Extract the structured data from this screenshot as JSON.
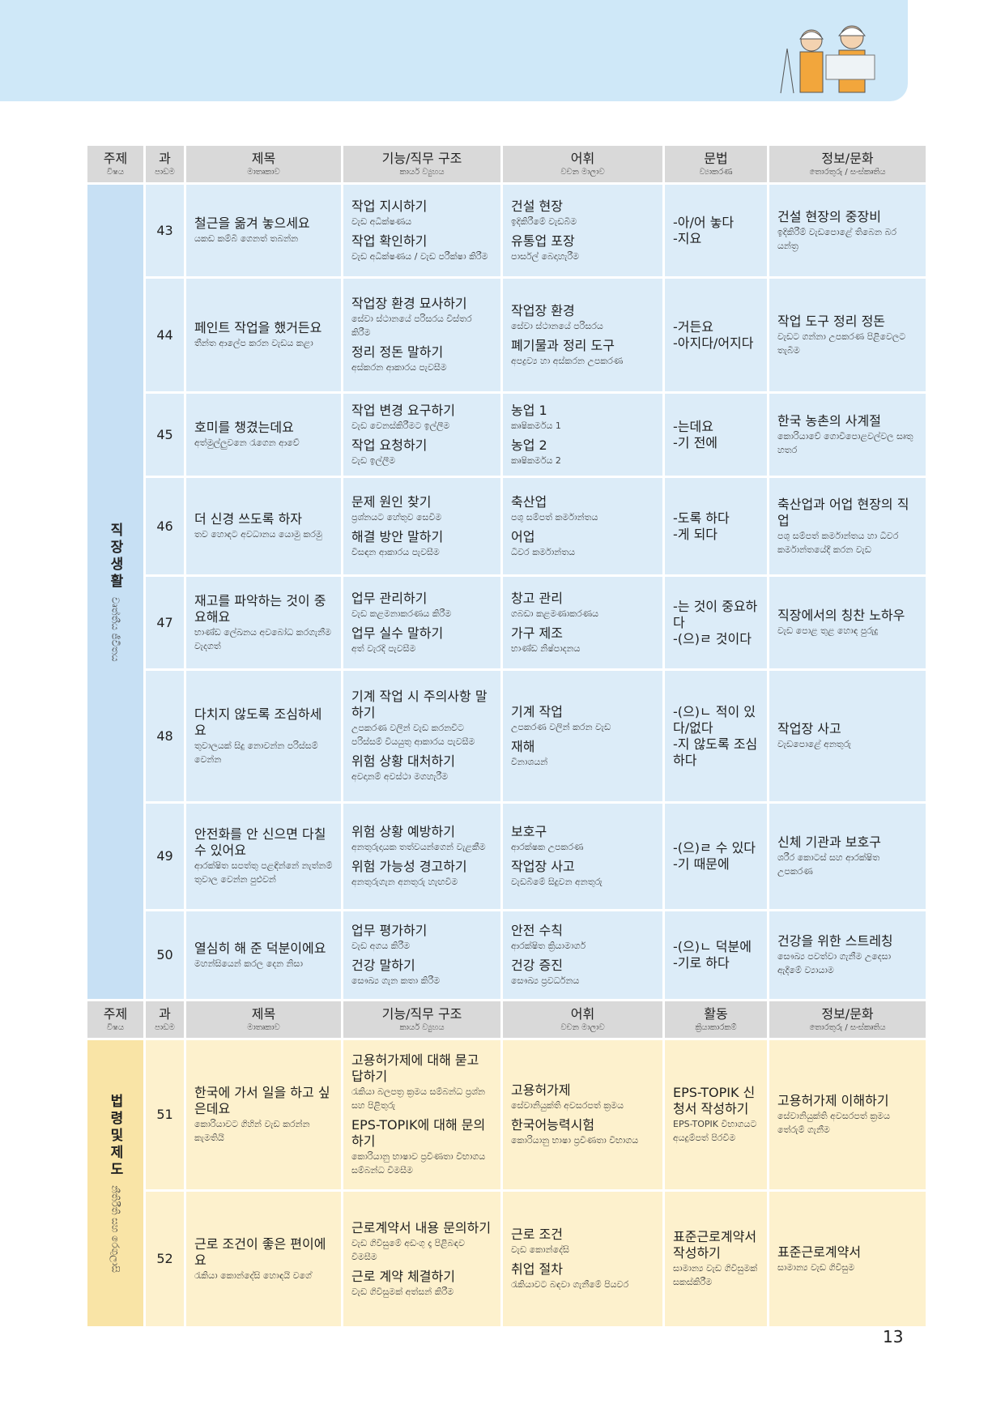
{
  "page_number": "13",
  "sections": [
    {
      "header": [
        {
          "ko": "주제",
          "si": "විෂය"
        },
        {
          "ko": "과",
          "si": "පාඩම"
        },
        {
          "ko": "제목",
          "si": "මාතෘකාව"
        },
        {
          "ko": "기능/직무 구조",
          "si": "කාර්ය ව්‍යුහය"
        },
        {
          "ko": "어휘",
          "si": "වචන මාලාව"
        },
        {
          "ko": "문법",
          "si": "ව්‍යාකරණ"
        },
        {
          "ko": "정보/문화",
          "si": "තොරතුරු / සංස්කෘතිය"
        }
      ],
      "topic": {
        "ko": "직장생활",
        "si": "වෘත්තීය ජීවිතය"
      },
      "rows": [
        {
          "lesson": "43",
          "title": {
            "ko": "철근을 옮겨 놓으세요",
            "si": "යකඩ කම්බි ගෙනත් තබන්න"
          },
          "functions": [
            {
              "ko": "작업 지시하기",
              "si": "වැඩ අධීක්ෂණය"
            },
            {
              "ko": "작업 확인하기",
              "si": "වැඩ අධීක්ෂණය / වැඩ පරීක්ෂා කිරීම"
            }
          ],
          "vocab": [
            {
              "ko": "건설 현장",
              "si": "ඉදිකිරීමේ වැඩබිම"
            },
            {
              "ko": "유통업 포장",
              "si": "පාර්සල් බෙදාහැරීම"
            }
          ],
          "grammar": [
            "-아/어 놓다",
            "-지요"
          ],
          "culture": {
            "ko": "건설 현장의 중장비",
            "si": "ඉදිකිරීම් වැඩපොළේ තිබෙන බර යන්ත්‍ර"
          }
        },
        {
          "lesson": "44",
          "title": {
            "ko": "페인트 작업을 했거든요",
            "si": "තීන්ත ආලේප කරන වැඩය කළා"
          },
          "functions": [
            {
              "ko": "작업장 환경 묘사하기",
              "si": "සේවා ස්ථානයේ පරිසරය විස්තර කිරීම"
            },
            {
              "ko": "정리 정돈 말하기",
              "si": "අස්කරන ආකාරය පැවසීම"
            }
          ],
          "vocab": [
            {
              "ko": "작업장 환경",
              "si": "සේවා ස්ථානයේ පරිසරය"
            },
            {
              "ko": "폐기물과 정리 도구",
              "si": "අපද්‍රව්‍ය හා අස්කරන උපකරණ"
            }
          ],
          "grammar": [
            "-거든요",
            "-아지다/어지다"
          ],
          "culture": {
            "ko": "작업 도구 정리 정돈",
            "si": "වැඩට ගන්නා උපකරණ පිළිවෙලට තැබීම"
          }
        },
        {
          "lesson": "45",
          "title": {
            "ko": "호미를 챙겼는데요",
            "si": "අත්මුල්ලුවනෙ රැගෙන ආවේ"
          },
          "functions": [
            {
              "ko": "작업 변경 요구하기",
              "si": "වැඩ වෙනස්කිරීමට ඉල්ලීම"
            },
            {
              "ko": "작업 요청하기",
              "si": "වැඩ ඉල්ලීම"
            }
          ],
          "vocab": [
            {
              "ko": "농업 1",
              "si": "කෘෂිකර්මය 1"
            },
            {
              "ko": "농업 2",
              "si": "කෘෂිකර්මය 2"
            }
          ],
          "grammar": [
            "-는데요",
            "-기 전에"
          ],
          "culture": {
            "ko": "한국 농촌의 사계절",
            "si": "කොරියාවේ ගොවිපොළවල්වල සෘතු හතර"
          }
        },
        {
          "lesson": "46",
          "title": {
            "ko": "더 신경 쓰도록 하자",
            "si": "තව හොඳට අවධානය යොමු කරමු"
          },
          "functions": [
            {
              "ko": "문제 원인 찾기",
              "si": "ප්‍රශ්නයට හේතුව සෙවීම"
            },
            {
              "ko": "해결 방안 말하기",
              "si": "විසඳන ආකාරය පැවසීම"
            }
          ],
          "vocab": [
            {
              "ko": "축산업",
              "si": "පශු සම්පත් කර්මාන්තය"
            },
            {
              "ko": "어업",
              "si": "ධීවර කර්මාන්තය"
            }
          ],
          "grammar": [
            "-도록 하다",
            "-게 되다"
          ],
          "culture": {
            "ko": "축산업과 어업 현장의 직업",
            "si": "පශු සම්පත් කර්මාන්තය හා ධීවර කර්මාන්තයේදී කරන වැඩ"
          }
        },
        {
          "lesson": "47",
          "title": {
            "ko": "재고를 파악하는 것이 중요해요",
            "si": "භාණ්ඩ ලේඛනය අවබෝධ කරගැනීම වැදගත්"
          },
          "functions": [
            {
              "ko": "업무 관리하기",
              "si": "වැඩ කළමනාකරණය කිරීම"
            },
            {
              "ko": "업무 실수 말하기",
              "si": "අත් වැරදි පැවසීම"
            }
          ],
          "vocab": [
            {
              "ko": "창고 관리",
              "si": "ගබඩා කළමණාකරණය"
            },
            {
              "ko": "가구 제조",
              "si": "භාණ්ඩ නිෂ්පාදනය"
            }
          ],
          "grammar": [
            "-는 것이 중요하다",
            "-(으)ㄹ 것이다"
          ],
          "culture": {
            "ko": "직장에서의 칭찬 노하우",
            "si": "වැඩ පොළ තුළ හොඳ පුරුදු"
          }
        },
        {
          "lesson": "48",
          "title": {
            "ko": "다치지 않도록 조심하세요",
            "si": "තුවාලයක් සිදු නොවන්න පරිස්සම් වෙන්න"
          },
          "functions": [
            {
              "ko": "기계 작업 시 주의사항 말하기",
              "si": "උපකරණ වලින් වැඩ කරනවිට පරිස්සම් වියයුතු ආකාරය පැවසීම"
            },
            {
              "ko": "위험 상황 대처하기",
              "si": "අවදානම් අවස්ථා මගහැරීම"
            }
          ],
          "vocab": [
            {
              "ko": "기계 작업",
              "si": "උපකරණ වලින් කරන වැඩ"
            },
            {
              "ko": "재해",
              "si": "විනාශයන්"
            }
          ],
          "grammar": [
            "-(으)ㄴ 적이 있다/없다",
            "-지 않도록 조심하다"
          ],
          "culture": {
            "ko": "작업장 사고",
            "si": "වැඩපොළේ අනතුරු"
          }
        },
        {
          "lesson": "49",
          "title": {
            "ko": "안전화를 안 신으면 다칠 수 있어요",
            "si": "ආරක්ෂිත සපත්තු පළඳින්නේ නැත්නම් තුවාල වෙන්න පුළුවන්"
          },
          "functions": [
            {
              "ko": "위험 상황 예방하기",
              "si": "අනතුරුදායක තත්වයන්ගෙන් වැළකීම"
            },
            {
              "ko": "위험 가능성 경고하기",
              "si": "අනතුරුගැන අනතුරු හැඟවීම"
            }
          ],
          "vocab": [
            {
              "ko": "보호구",
              "si": "ආරක්ෂක උපකරණ"
            },
            {
              "ko": "작업장 사고",
              "si": "වැඩබිමේ සිදුවන අනතුරු"
            }
          ],
          "grammar": [
            "-(으)ㄹ 수 있다",
            "-기 때문에"
          ],
          "culture": {
            "ko": "신체 기관과 보호구",
            "si": "ශරීර කොටස් සහ ආරක්ෂිත උපකරණ"
          }
        },
        {
          "lesson": "50",
          "title": {
            "ko": "열심히 해 준 덕분이에요",
            "si": "මහන්සියෙන් කරල දෙන නිසා"
          },
          "functions": [
            {
              "ko": "업무 평가하기",
              "si": "වැඩ අගය කිරීම"
            },
            {
              "ko": "건강 말하기",
              "si": "සෞඛ්‍ය ගැන කතා කිරීම"
            }
          ],
          "vocab": [
            {
              "ko": "안전 수칙",
              "si": "ආරක්ෂිත ක්‍රියාමාර්ග"
            },
            {
              "ko": "건강 증진",
              "si": "සෞඛ්‍ය ප්‍රවර්ධනය"
            }
          ],
          "grammar": [
            "-(으)ㄴ 덕분에",
            "-기로 하다"
          ],
          "culture": {
            "ko": "건강을 위한 스트레칭",
            "si": "සෞඛ්‍ය පවත්වා ගැනීම උදෙසා ඇදීමේ ව්‍යායාම"
          }
        }
      ]
    },
    {
      "header": [
        {
          "ko": "주제",
          "si": "විෂය"
        },
        {
          "ko": "과",
          "si": "පාඩම"
        },
        {
          "ko": "제목",
          "si": "මාතෘකාව"
        },
        {
          "ko": "기능/직무 구조",
          "si": "කාර්ය ව්‍යුහය"
        },
        {
          "ko": "어휘",
          "si": "වචන මාලාව"
        },
        {
          "ko": "활동",
          "si": "ක්‍රියාකාරකම්"
        },
        {
          "ko": "정보/문화",
          "si": "තොරතුරු / සංස්කෘතිය"
        }
      ],
      "topic": {
        "ko": "법령및제도",
        "si": "නීතිරීති සහ රෙගුලාසි"
      },
      "rows": [
        {
          "lesson": "51",
          "title": {
            "ko": "한국에 가서 일을 하고 싶은데요",
            "si": "කොරියාවට ගිහින් වැඩ කරන්න කැමතියි"
          },
          "functions": [
            {
              "ko": "고용허가제에 대해 묻고 답하기",
              "si": "රැකියා බලපත්‍ර ක්‍රමය සම්බන්ධ ප්‍රශ්න සහ පිළිතුරු"
            },
            {
              "ko": "EPS-TOPIK에 대해 문의하기",
              "si": "කොරියානු භාෂාව ප්‍රවීණතා විභාගය සම්බන්ධ විමසීම"
            }
          ],
          "vocab": [
            {
              "ko": "고용허가제",
              "si": "සේවානියුක්ති අවසරපත් ක්‍රමය"
            },
            {
              "ko": "한국어능력시험",
              "si": "කොරියානු භාෂා ප්‍රවීණතා විභාගය"
            }
          ],
          "activity": {
            "ko": "EPS-TOPIK 신청서 작성하기",
            "si": "EPS-TOPIK විභාගයට අයදුම්පත් පිරවීම"
          },
          "culture": {
            "ko": "고용허가제 이해하기",
            "si": "සේවානියුක්ති අවසරපත් ක්‍රමය තේරුම් ගැනීම"
          }
        },
        {
          "lesson": "52",
          "title": {
            "ko": "근로 조건이 좋은 편이에요",
            "si": "රැකියා කොන්දේසි හොඳයි වගේ"
          },
          "functions": [
            {
              "ko": "근로계약서 내용 문의하기",
              "si": "වැඩ ගිවිසුමේ අඩංගු දෑ පිළිබඳව විමසීම"
            },
            {
              "ko": "근로 계약 체결하기",
              "si": "වැඩ ගිවිසුමක් අත්සන් කිරීම"
            }
          ],
          "vocab": [
            {
              "ko": "근로 조건",
              "si": "වැඩ කොන්දේසි"
            },
            {
              "ko": "취업 절차",
              "si": "රැකියාවට බඳවා ගැනීමේ පියවර"
            }
          ],
          "activity": {
            "ko": "표준근로계약서 작성하기",
            "si": "සාමාන්‍ය වැඩ ගිවිසුමක් සකස්කිරීම"
          },
          "culture": {
            "ko": "표준근로계약서",
            "si": "සාමාන්‍ය වැඩ ගිවිසුම"
          }
        }
      ]
    }
  ]
}
